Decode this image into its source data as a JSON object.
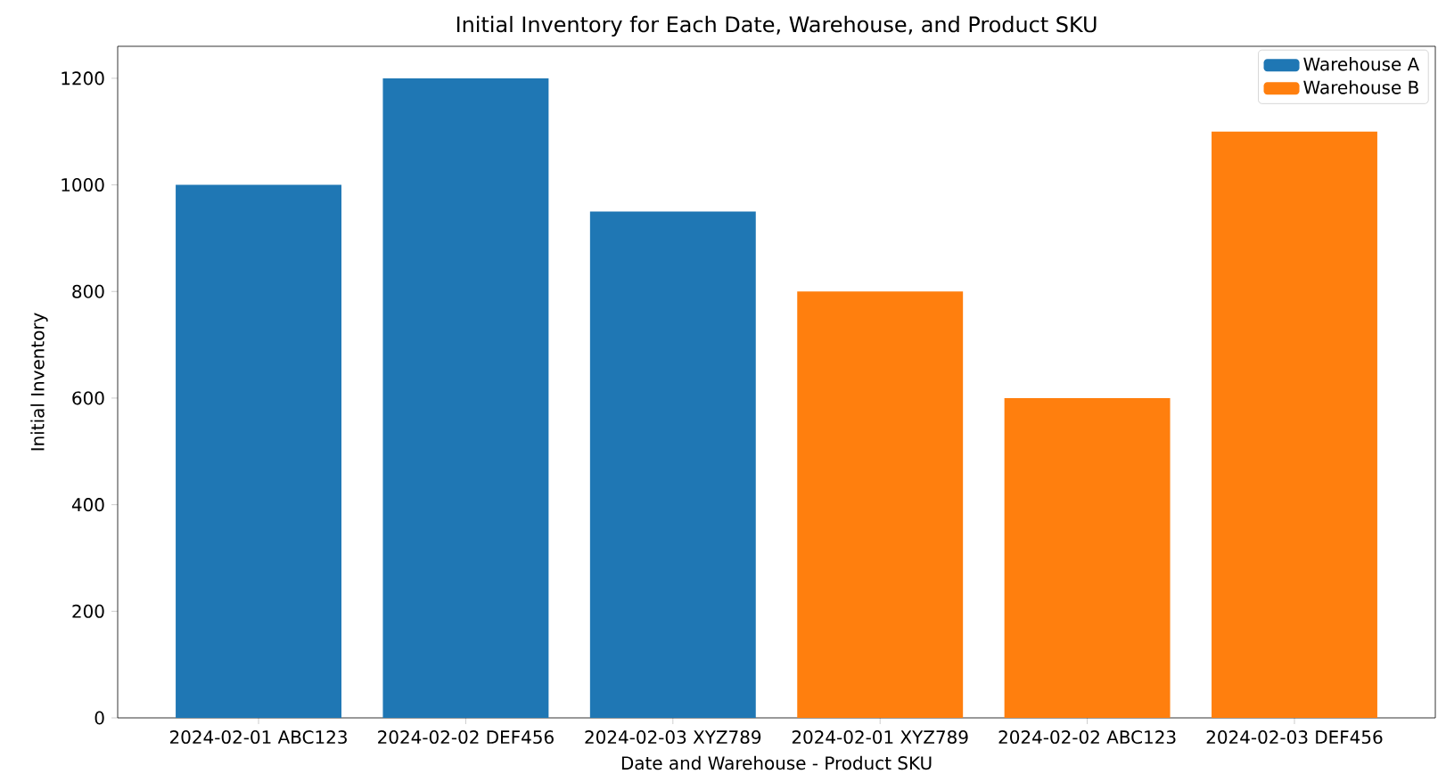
{
  "chart_data": {
    "type": "bar",
    "title": "Initial Inventory for Each Date, Warehouse, and Product SKU",
    "xlabel": "Date and Warehouse - Product SKU",
    "ylabel": "Initial Inventory",
    "categories": [
      "2024-02-01 ABC123",
      "2024-02-02 DEF456",
      "2024-02-03 XYZ789",
      "2024-02-01 XYZ789",
      "2024-02-02 ABC123",
      "2024-02-03 DEF456"
    ],
    "series": [
      {
        "name": "Warehouse A",
        "color": "#1f77b4",
        "values": [
          1000,
          1200,
          950,
          null,
          null,
          null
        ]
      },
      {
        "name": "Warehouse B",
        "color": "#ff7f0e",
        "values": [
          null,
          null,
          null,
          800,
          600,
          1100
        ]
      }
    ],
    "ylim": [
      0,
      1260
    ],
    "yticks": [
      0,
      200,
      400,
      600,
      800,
      1000,
      1200
    ],
    "legend": "top right"
  }
}
